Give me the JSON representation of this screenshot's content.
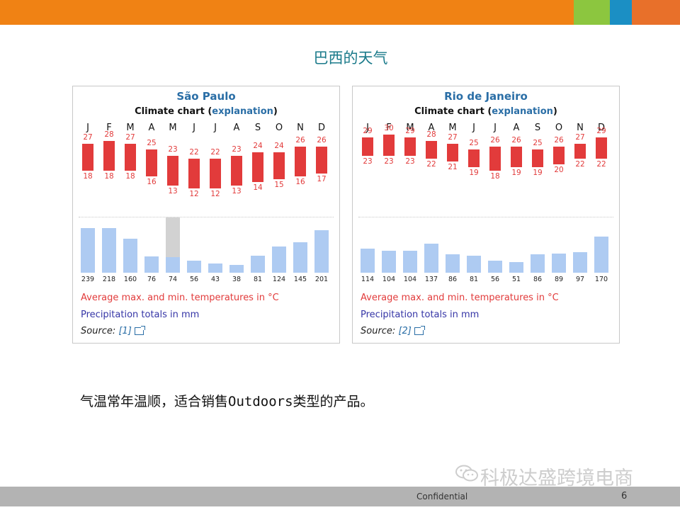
{
  "colors": {
    "top_bar": "#f08214",
    "square_green": "#8cc63f",
    "square_blue": "#1b8fc4",
    "square_orange": "#e8702a",
    "temperature": "#e23b3b",
    "precipitation": "#aecbf2",
    "footer": "#b3b3b3",
    "title": "#1a7a8a"
  },
  "slide": {
    "title": "巴西的天气",
    "caption": "气温常年温顺，适合销售Outdoors类型的产品。",
    "watermark": "科极达盛跨境电商",
    "watermark_icon": "wechat-icon",
    "footer_label": "Confidential",
    "page_number": "6"
  },
  "panels": [
    {
      "city": "São Paulo",
      "subtitle_prefix": "Climate chart (",
      "subtitle_link": "explanation",
      "subtitle_suffix": ")",
      "months": [
        "J",
        "F",
        "M",
        "A",
        "M",
        "J",
        "J",
        "A",
        "S",
        "O",
        "N",
        "D"
      ],
      "max_temp": [
        27,
        28,
        27,
        25,
        23,
        22,
        22,
        23,
        24,
        24,
        26,
        26
      ],
      "min_temp": [
        18,
        18,
        18,
        16,
        13,
        12,
        12,
        13,
        14,
        15,
        16,
        17
      ],
      "precip": [
        239,
        218,
        160,
        76,
        74,
        56,
        43,
        38,
        81,
        124,
        145,
        201
      ],
      "precip_overflow_month_index": 4,
      "legend_temp": "Average max. and min. temperatures in °C",
      "legend_precip": "Precipitation totals in mm",
      "source_label": "Source:",
      "source_ref": "[1]",
      "source_icon": "external-link-icon"
    },
    {
      "city": "Rio de Janeiro",
      "subtitle_prefix": "Climate chart (",
      "subtitle_link": "explanation",
      "subtitle_suffix": ")",
      "months": [
        "J",
        "F",
        "M",
        "A",
        "M",
        "J",
        "J",
        "A",
        "S",
        "O",
        "N",
        "D"
      ],
      "max_temp": [
        29,
        30,
        29,
        28,
        27,
        25,
        26,
        26,
        25,
        26,
        27,
        29
      ],
      "min_temp": [
        23,
        23,
        23,
        22,
        21,
        19,
        18,
        19,
        19,
        20,
        22,
        22
      ],
      "precip": [
        114,
        104,
        104,
        137,
        86,
        81,
        56,
        51,
        86,
        89,
        97,
        170
      ],
      "precip_overflow_month_index": null,
      "legend_temp": "Average max. and min. temperatures in °C",
      "legend_precip": "Precipitation totals in mm",
      "source_label": "Source:",
      "source_ref": "[2]",
      "source_icon": "external-link-icon"
    }
  ]
}
